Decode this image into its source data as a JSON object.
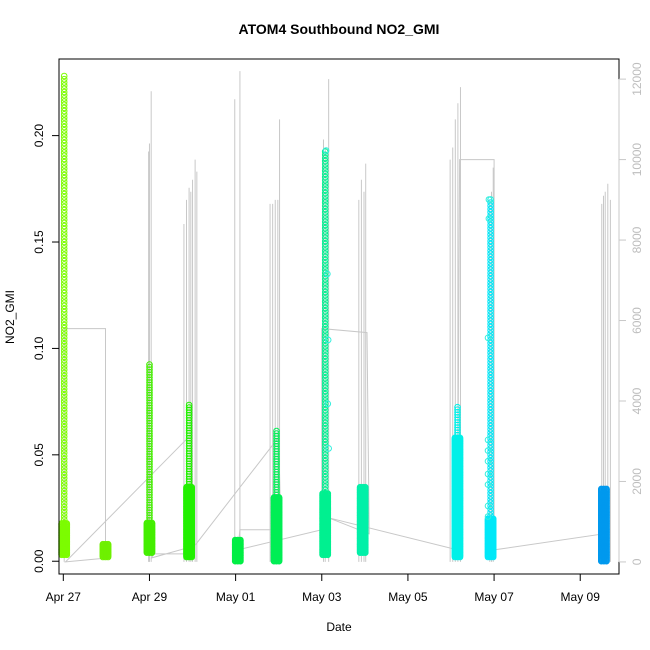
{
  "chart_data": {
    "type": "scatter",
    "title": "ATOM4 Southbound NO2_GMI",
    "xlabel": "Date",
    "ylabel": "NO2_GMI",
    "xlim": [
      -0.1,
      12.9
    ],
    "ylim": [
      -0.006,
      0.236
    ],
    "y2lim": [
      -300,
      12500
    ],
    "x_ticks": [
      {
        "value": 0,
        "label": "Apr 27"
      },
      {
        "value": 2,
        "label": "Apr 29"
      },
      {
        "value": 4,
        "label": "May 01"
      },
      {
        "value": 6,
        "label": "May 03"
      },
      {
        "value": 8,
        "label": "May 05"
      },
      {
        "value": 10,
        "label": "May 07"
      },
      {
        "value": 12,
        "label": "May 09"
      }
    ],
    "y_ticks": [
      {
        "value": 0.0,
        "label": "0.00"
      },
      {
        "value": 0.05,
        "label": "0.05"
      },
      {
        "value": 0.1,
        "label": "0.10"
      },
      {
        "value": 0.15,
        "label": "0.15"
      },
      {
        "value": 0.2,
        "label": "0.20"
      }
    ],
    "y2_ticks": [
      {
        "value": 0,
        "label": "0"
      },
      {
        "value": 2000,
        "label": "2000"
      },
      {
        "value": 4000,
        "label": "4000"
      },
      {
        "value": 6000,
        "label": "6000"
      },
      {
        "value": 8000,
        "label": "8000"
      },
      {
        "value": 10000,
        "label": "10000"
      },
      {
        "value": 12000,
        "label": "12000"
      }
    ],
    "grid": false,
    "secondary_color": "#c8c8c8",
    "clusters": [
      {
        "x": 0.02,
        "ymin": 0.003,
        "ymax": 0.228,
        "dense_to": 0.018,
        "color": "#7cfc00"
      },
      {
        "x": 0.98,
        "ymin": 0.002,
        "ymax": 0.008,
        "dense_to": 0.008,
        "color": "#6ef000"
      },
      {
        "x": 2.0,
        "ymin": 0.004,
        "ymax": 0.093,
        "dense_to": 0.018,
        "color": "#44ee00"
      },
      {
        "x": 2.92,
        "ymin": 0.002,
        "ymax": 0.074,
        "dense_to": 0.035,
        "color": "#22f000"
      },
      {
        "x": 4.05,
        "ymin": 0.0,
        "ymax": 0.01,
        "dense_to": 0.01,
        "color": "#00ee44"
      },
      {
        "x": 4.95,
        "ymin": 0.0,
        "ymax": 0.062,
        "dense_to": 0.03,
        "color": "#00ee55"
      },
      {
        "x": 6.08,
        "ymin": 0.003,
        "ymax": 0.193,
        "dense_to": 0.032,
        "color": "#00f090"
      },
      {
        "x": 6.95,
        "ymin": 0.004,
        "ymax": 0.035,
        "dense_to": 0.035,
        "color": "#00f0a8"
      },
      {
        "x": 9.15,
        "ymin": 0.002,
        "ymax": 0.073,
        "dense_to": 0.058,
        "color": "#00f0e8"
      },
      {
        "x": 9.92,
        "ymin": 0.002,
        "ymax": 0.17,
        "dense_to": 0.02,
        "color": "#00e8f8"
      },
      {
        "x": 12.55,
        "ymin": 0.0,
        "ymax": 0.034,
        "dense_to": 0.034,
        "color": "#0099ee"
      }
    ],
    "outliers": [
      {
        "x": 6.1,
        "y": 0.193
      },
      {
        "x": 6.13,
        "y": 0.135
      },
      {
        "x": 6.15,
        "y": 0.104
      },
      {
        "x": 6.14,
        "y": 0.074
      },
      {
        "x": 6.16,
        "y": 0.053
      },
      {
        "x": 9.88,
        "y": 0.17
      },
      {
        "x": 9.92,
        "y": 0.17
      },
      {
        "x": 9.88,
        "y": 0.161
      },
      {
        "x": 9.86,
        "y": 0.105
      },
      {
        "x": 9.86,
        "y": 0.057
      },
      {
        "x": 9.86,
        "y": 0.052
      },
      {
        "x": 9.86,
        "y": 0.047
      },
      {
        "x": 9.86,
        "y": 0.041
      },
      {
        "x": 9.86,
        "y": 0.036
      },
      {
        "x": 9.86,
        "y": 0.026
      },
      {
        "x": 9.86,
        "y": 0.021
      }
    ],
    "altitude_spikes": [
      {
        "x": 1.98,
        "top": 10200
      },
      {
        "x": 2.0,
        "top": 10400
      },
      {
        "x": 2.04,
        "top": 11700
      },
      {
        "x": 2.8,
        "top": 8400
      },
      {
        "x": 2.86,
        "top": 9000
      },
      {
        "x": 2.92,
        "top": 9300
      },
      {
        "x": 2.96,
        "top": 9200
      },
      {
        "x": 3.0,
        "top": 9500
      },
      {
        "x": 3.06,
        "top": 10000
      },
      {
        "x": 3.1,
        "top": 9700
      },
      {
        "x": 3.98,
        "top": 11500
      },
      {
        "x": 4.1,
        "top": 12200
      },
      {
        "x": 4.8,
        "top": 8900
      },
      {
        "x": 4.86,
        "top": 8900
      },
      {
        "x": 4.92,
        "top": 9000
      },
      {
        "x": 4.98,
        "top": 9000
      },
      {
        "x": 5.02,
        "top": 11000
      },
      {
        "x": 6.04,
        "top": 10500
      },
      {
        "x": 6.08,
        "top": 10300
      },
      {
        "x": 6.16,
        "top": 12000
      },
      {
        "x": 6.86,
        "top": 9000
      },
      {
        "x": 6.92,
        "top": 9500
      },
      {
        "x": 6.98,
        "top": 9200
      },
      {
        "x": 7.02,
        "top": 9900
      },
      {
        "x": 8.98,
        "top": 10000
      },
      {
        "x": 9.04,
        "top": 10300
      },
      {
        "x": 9.1,
        "top": 11000
      },
      {
        "x": 9.16,
        "top": 11400
      },
      {
        "x": 9.22,
        "top": 11800
      },
      {
        "x": 9.9,
        "top": 9000
      },
      {
        "x": 9.94,
        "top": 9200
      },
      {
        "x": 9.98,
        "top": 9800
      },
      {
        "x": 12.5,
        "top": 8900
      },
      {
        "x": 12.54,
        "top": 9100
      },
      {
        "x": 12.58,
        "top": 9200
      },
      {
        "x": 12.64,
        "top": 9400
      },
      {
        "x": 12.7,
        "top": 9000
      }
    ],
    "altitude_path": [
      [
        0.02,
        0
      ],
      [
        0.02,
        5800
      ],
      [
        0.98,
        5800
      ],
      [
        0.98,
        100
      ],
      [
        1.05,
        100
      ],
      [
        0.05,
        0
      ],
      [
        3.0,
        3200
      ],
      [
        2.95,
        200
      ],
      [
        2.1,
        200
      ],
      [
        2.05,
        100
      ],
      [
        3.05,
        400
      ],
      [
        5.0,
        3100
      ],
      [
        5.05,
        800
      ],
      [
        4.1,
        800
      ],
      [
        4.05,
        300
      ],
      [
        6.0,
        800
      ],
      [
        6.0,
        5800
      ],
      [
        7.05,
        5700
      ],
      [
        7.1,
        700
      ],
      [
        6.15,
        1100
      ],
      [
        9.15,
        300
      ],
      [
        9.2,
        10000
      ],
      [
        10.0,
        10000
      ],
      [
        10.0,
        300
      ],
      [
        12.55,
        700
      ],
      [
        12.6,
        300
      ]
    ]
  }
}
